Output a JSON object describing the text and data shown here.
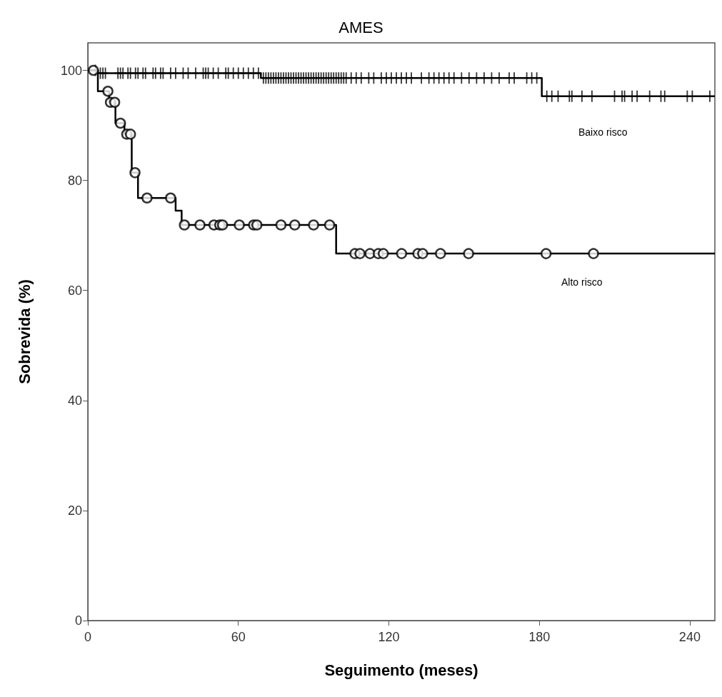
{
  "chart_data": {
    "type": "step",
    "title": "AMES",
    "xlabel": "Seguimento (meses)",
    "ylabel": "Sobrevida (%)",
    "xlim": [
      0,
      250
    ],
    "xticks": [
      0,
      60,
      120,
      180,
      240
    ],
    "ylim": [
      0,
      105
    ],
    "yticks": [
      0,
      20,
      40,
      60,
      80,
      100
    ],
    "grid": false,
    "series": [
      {
        "color": "#000000",
        "marker": "none",
        "x": [
          0,
          4,
          69,
          181,
          250
        ],
        "values": [
          100,
          99.5,
          98.6,
          95.3,
          95.3
        ]
      },
      {
        "type": "scatter",
        "color": "#000000",
        "marker": "cross",
        "x": [
          3,
          5,
          6,
          7,
          12,
          13,
          14,
          16,
          17,
          19,
          20,
          22,
          23,
          26,
          27,
          29,
          30,
          33,
          35,
          38,
          40,
          43,
          46,
          47,
          48,
          50,
          52,
          55,
          56,
          58,
          60,
          62,
          64,
          66,
          68,
          70,
          71,
          72,
          73,
          74,
          75,
          76,
          77,
          78,
          79,
          80,
          81,
          82,
          83,
          84,
          85,
          86,
          87,
          88,
          89,
          90,
          91,
          92,
          93,
          94,
          95,
          96,
          97,
          98,
          99,
          100,
          101,
          102,
          103,
          105,
          107,
          109,
          112,
          114,
          117,
          119,
          121,
          123,
          125,
          127,
          129,
          133,
          136,
          138,
          140,
          142,
          144,
          146,
          149,
          152,
          155,
          158,
          161,
          164,
          168,
          170,
          175,
          177,
          179,
          183,
          185,
          187.5,
          192,
          193,
          197,
          201,
          210,
          213,
          214,
          217,
          219,
          224,
          228.5,
          230,
          239,
          241,
          248
        ],
        "values": [
          100,
          99.5,
          99.5,
          99.5,
          99.5,
          99.5,
          99.5,
          99.5,
          99.5,
          99.5,
          99.5,
          99.5,
          99.5,
          99.5,
          99.5,
          99.5,
          99.5,
          99.5,
          99.5,
          99.5,
          99.5,
          99.5,
          99.5,
          99.5,
          99.5,
          99.5,
          99.5,
          99.5,
          99.5,
          99.5,
          99.5,
          99.5,
          99.5,
          99.5,
          99.5,
          98.6,
          98.6,
          98.6,
          98.6,
          98.6,
          98.6,
          98.6,
          98.6,
          98.6,
          98.6,
          98.6,
          98.6,
          98.6,
          98.6,
          98.6,
          98.6,
          98.6,
          98.6,
          98.6,
          98.6,
          98.6,
          98.6,
          98.6,
          98.6,
          98.6,
          98.6,
          98.6,
          98.6,
          98.6,
          98.6,
          98.6,
          98.6,
          98.6,
          98.6,
          98.6,
          98.6,
          98.6,
          98.6,
          98.6,
          98.6,
          98.6,
          98.6,
          98.6,
          98.6,
          98.6,
          98.6,
          98.6,
          98.6,
          98.6,
          98.6,
          98.6,
          98.6,
          98.6,
          98.6,
          98.6,
          98.6,
          98.6,
          98.6,
          98.6,
          98.6,
          98.6,
          98.6,
          98.6,
          98.6,
          95.3,
          95.3,
          95.3,
          95.3,
          95.3,
          95.3,
          95.3,
          95.3,
          95.3,
          95.3,
          95.3,
          95.3,
          95.3,
          95.3,
          95.3,
          95.3,
          95.3,
          95.3
        ]
      },
      {
        "color": "#000000",
        "marker": "none",
        "x": [
          0,
          4,
          8.5,
          11,
          14.6,
          17.5,
          20,
          35,
          37.4,
          99,
          250
        ],
        "values": [
          100,
          96.2,
          94.2,
          90.4,
          88.4,
          81.4,
          76.8,
          74.5,
          71.9,
          66.7,
          66.7
        ]
      },
      {
        "type": "scatter",
        "color": "#000000",
        "marker": "circle",
        "x": [
          2.2,
          8,
          9,
          10.7,
          13,
          15.5,
          17,
          18.8,
          23.6,
          33,
          38.5,
          44.7,
          50.3,
          52.6,
          53.7,
          60.4,
          66.1,
          67.4,
          77,
          82.5,
          90,
          96.4,
          106.5,
          108.5,
          112.5,
          115.8,
          117.8,
          125.1,
          131.6,
          133.5,
          140.6,
          151.8,
          182.7,
          201.6
        ],
        "values": [
          100,
          96.2,
          94.2,
          94.2,
          90.4,
          88.4,
          88.4,
          81.4,
          76.8,
          76.8,
          71.9,
          71.9,
          71.9,
          71.9,
          71.9,
          71.9,
          71.9,
          71.9,
          71.9,
          71.9,
          71.9,
          71.9,
          66.7,
          66.7,
          66.7,
          66.7,
          66.7,
          66.7,
          66.7,
          66.7,
          66.7,
          66.7,
          66.7,
          66.7
        ]
      }
    ],
    "annotations": [
      "Baixo risco",
      "Alto risco"
    ]
  }
}
